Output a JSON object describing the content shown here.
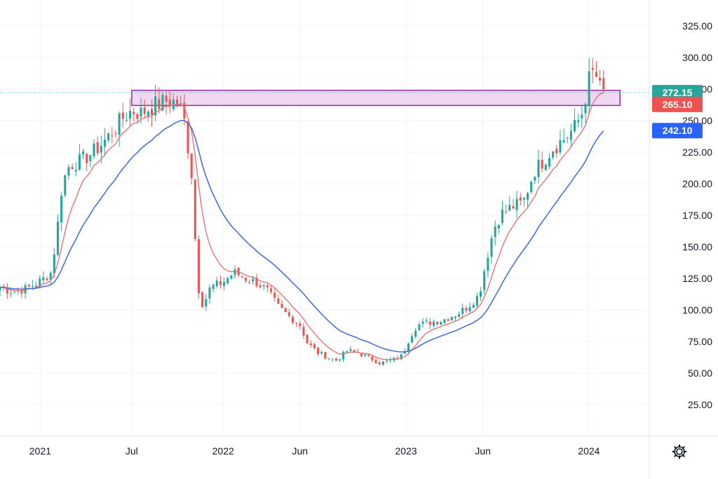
{
  "chart_data": {
    "type": "candlestick",
    "colors": {
      "up": "#26a69a",
      "down": "#ef5350",
      "ema_short": "#e57373",
      "ema_long": "#4a6fd8",
      "zone_fill": "#e9c6ec",
      "zone_stroke": "#9c27b0"
    },
    "y_ticks": [
      "25.00",
      "50.00",
      "75.00",
      "100.00",
      "125.00",
      "150.00",
      "175.00",
      "200.00",
      "225.00",
      "250.00",
      "275.00",
      "300.00",
      "325.00"
    ],
    "ylim": [
      0,
      340
    ],
    "x_ticks": [
      {
        "label": "2021",
        "t": 2021.0
      },
      {
        "label": "Jul",
        "t": 2021.5
      },
      {
        "label": "2022",
        "t": 2022.0
      },
      {
        "label": "Jun",
        "t": 2022.42
      },
      {
        "label": "2023",
        "t": 2023.0
      },
      {
        "label": "Jun",
        "t": 2023.42
      },
      {
        "label": "2024",
        "t": 2024.0
      }
    ],
    "xlim": [
      2020.78,
      2024.33
    ],
    "resistance_zone": {
      "t_start": 2021.5,
      "t_end": 2024.17,
      "low": 262,
      "high": 274
    },
    "price_labels": [
      {
        "text": "272.15",
        "value": 272.15,
        "color": "#26a69a"
      },
      {
        "text": "265.10",
        "value": 265.1,
        "color": "#ef5350"
      },
      {
        "text": "242.10",
        "value": 242.1,
        "color": "#2962ff"
      }
    ],
    "last_price_line": 272.15,
    "close_anchors": [
      [
        2020.78,
        118
      ],
      [
        2020.85,
        114
      ],
      [
        2020.92,
        117
      ],
      [
        2020.98,
        121
      ],
      [
        2021.03,
        126
      ],
      [
        2021.06,
        130
      ],
      [
        2021.09,
        160
      ],
      [
        2021.12,
        200
      ],
      [
        2021.16,
        215
      ],
      [
        2021.22,
        218
      ],
      [
        2021.28,
        224
      ],
      [
        2021.34,
        232
      ],
      [
        2021.4,
        242
      ],
      [
        2021.45,
        252
      ],
      [
        2021.5,
        258
      ],
      [
        2021.55,
        256
      ],
      [
        2021.62,
        262
      ],
      [
        2021.7,
        266
      ],
      [
        2021.76,
        264
      ],
      [
        2021.79,
        248
      ],
      [
        2021.83,
        205
      ],
      [
        2021.86,
        120
      ],
      [
        2021.89,
        103
      ],
      [
        2021.93,
        118
      ],
      [
        2022.0,
        122
      ],
      [
        2022.06,
        130
      ],
      [
        2022.12,
        125
      ],
      [
        2022.18,
        122
      ],
      [
        2022.24,
        116
      ],
      [
        2022.3,
        103
      ],
      [
        2022.36,
        95
      ],
      [
        2022.42,
        88
      ],
      [
        2022.46,
        74
      ],
      [
        2022.52,
        66
      ],
      [
        2022.58,
        62
      ],
      [
        2022.62,
        60
      ],
      [
        2022.68,
        68
      ],
      [
        2022.74,
        66
      ],
      [
        2022.8,
        62
      ],
      [
        2022.86,
        58
      ],
      [
        2022.92,
        60
      ],
      [
        2022.98,
        64
      ],
      [
        2023.02,
        78
      ],
      [
        2023.06,
        88
      ],
      [
        2023.12,
        90
      ],
      [
        2023.2,
        92
      ],
      [
        2023.28,
        97
      ],
      [
        2023.34,
        103
      ],
      [
        2023.4,
        112
      ],
      [
        2023.44,
        140
      ],
      [
        2023.48,
        165
      ],
      [
        2023.52,
        176
      ],
      [
        2023.58,
        182
      ],
      [
        2023.64,
        185
      ],
      [
        2023.7,
        210
      ],
      [
        2023.76,
        220
      ],
      [
        2023.8,
        228
      ],
      [
        2023.86,
        235
      ],
      [
        2023.92,
        244
      ],
      [
        2023.96,
        255
      ],
      [
        2024.0,
        282
      ],
      [
        2024.03,
        290
      ],
      [
        2024.06,
        275
      ],
      [
        2024.08,
        272
      ]
    ],
    "candle_count": 168
  }
}
